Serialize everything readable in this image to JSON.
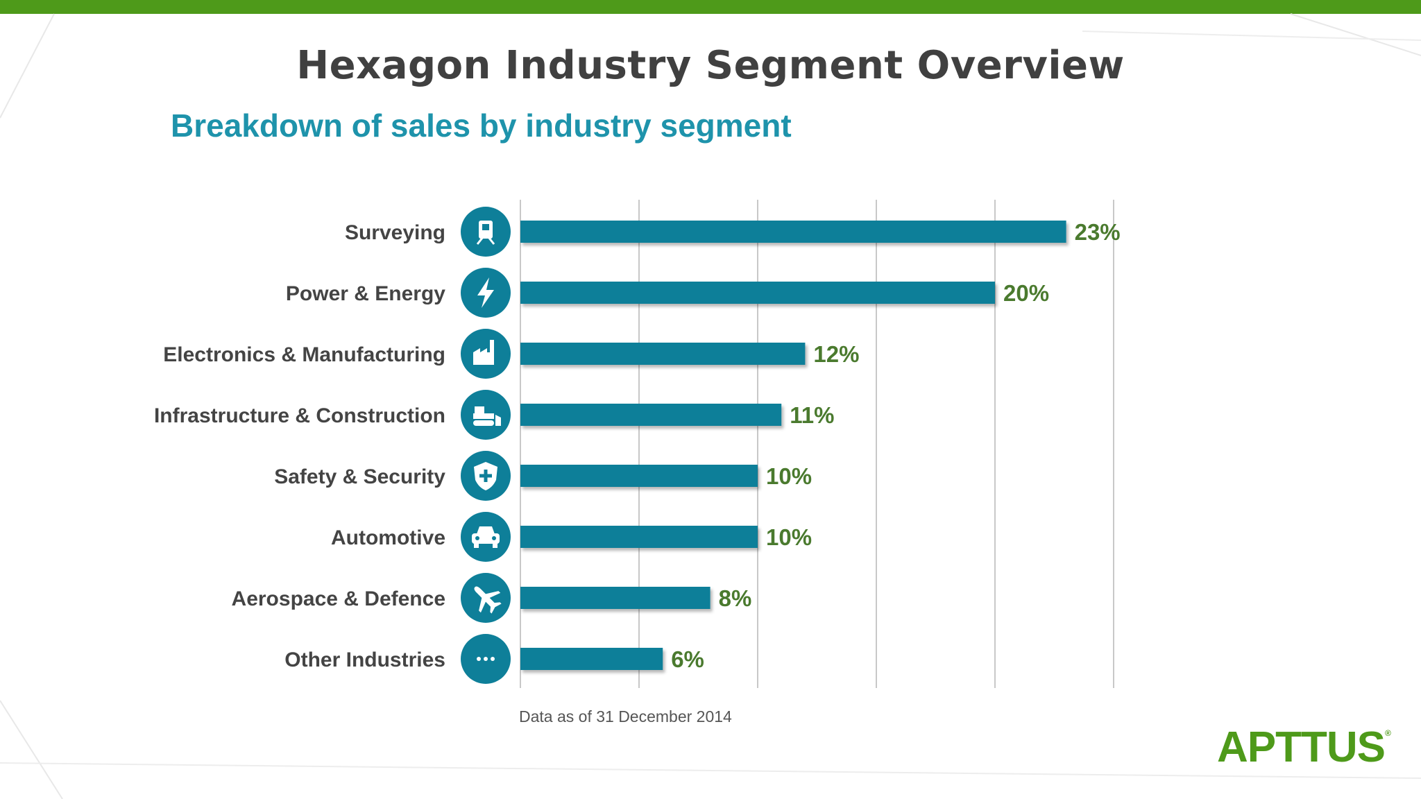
{
  "slide": {
    "title": "Hexagon Industry Segment Overview",
    "subtitle": "Breakdown of sales by industry segment",
    "footnote": "Data as of 31 December 2014",
    "logo_text": "APTTUS",
    "accent_color": "#4e9a1a",
    "subtitle_color": "#1e93ab",
    "bar_color": "#0e7f99",
    "value_color": "#4a7a2e"
  },
  "chart_data": {
    "type": "bar",
    "orientation": "horizontal",
    "title": "Breakdown of sales by industry segment",
    "categories": [
      "Surveying",
      "Power & Energy",
      "Electronics & Manufacturing",
      "Infrastructure & Construction",
      "Safety & Security",
      "Automotive",
      "Aerospace & Defence",
      "Other Industries"
    ],
    "values": [
      23,
      20,
      12,
      11,
      10,
      10,
      8,
      6
    ],
    "value_labels": [
      "23%",
      "20%",
      "12%",
      "11%",
      "10%",
      "10%",
      "8%",
      "6%"
    ],
    "icons": [
      "surveying-icon",
      "lightning-icon",
      "factory-icon",
      "bulldozer-icon",
      "shield-plus-icon",
      "car-icon",
      "airplane-icon",
      "ellipsis-icon"
    ],
    "xlim": [
      0,
      25
    ],
    "grid": true,
    "legend": "none"
  }
}
